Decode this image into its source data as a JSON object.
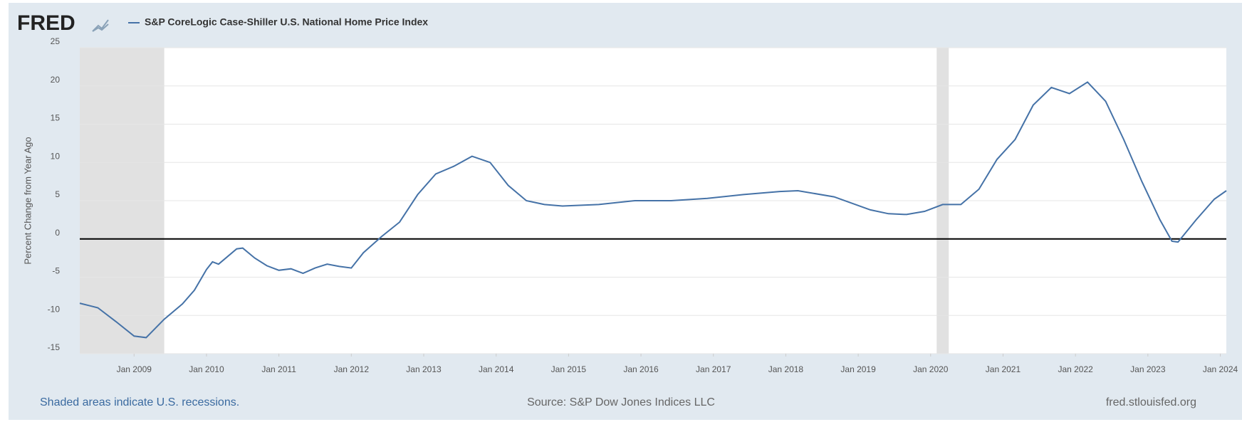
{
  "chart_data": {
    "type": "line",
    "logo": "FRED",
    "y_label": "Percent Change from Year Ago",
    "footer_left": "Shaded areas indicate U.S. recessions.",
    "footer_center": "Source: S&P Dow Jones Indices LLC",
    "footer_right": "fred.stlouisfed.org",
    "x": [
      "2008-04",
      "2008-07",
      "2008-10",
      "2009-01",
      "2009-03",
      "2009-06",
      "2009-09",
      "2009-11",
      "2010-01",
      "2010-02",
      "2010-03",
      "2010-06",
      "2010-07",
      "2010-09",
      "2010-11",
      "2011-01",
      "2011-03",
      "2011-05",
      "2011-07",
      "2011-09",
      "2011-11",
      "2012-01",
      "2012-03",
      "2012-06",
      "2012-09",
      "2012-12",
      "2013-03",
      "2013-06",
      "2013-09",
      "2013-12",
      "2014-03",
      "2014-06",
      "2014-09",
      "2014-12",
      "2015-06",
      "2015-12",
      "2016-06",
      "2016-12",
      "2017-06",
      "2017-12",
      "2018-03",
      "2018-09",
      "2019-03",
      "2019-06",
      "2019-09",
      "2019-12",
      "2020-03",
      "2020-06",
      "2020-09",
      "2020-12",
      "2021-03",
      "2021-06",
      "2021-09",
      "2021-12",
      "2022-03",
      "2022-06",
      "2022-09",
      "2022-12",
      "2023-03",
      "2023-05",
      "2023-06",
      "2023-09",
      "2023-12",
      "2024-02"
    ],
    "series": [
      {
        "name": "S&P CoreLogic Case-Shiller U.S. National Home Price Index",
        "color": "#4572a7",
        "values": [
          -8.4,
          -9,
          -10.8,
          -12.7,
          -12.9,
          -10.5,
          -8.5,
          -6.7,
          -4,
          -3,
          -3.3,
          -1.3,
          -1.2,
          -2.5,
          -3.5,
          -4.1,
          -3.9,
          -4.5,
          -3.8,
          -3.3,
          -3.6,
          -3.8,
          -1.8,
          0.3,
          2.2,
          5.8,
          8.5,
          9.5,
          10.8,
          10,
          7,
          5,
          4.5,
          4.3,
          4.5,
          5,
          5,
          5.3,
          5.8,
          6.2,
          6.3,
          5.5,
          3.8,
          3.3,
          3.2,
          3.6,
          4.5,
          4.5,
          6.5,
          10.4,
          13,
          17.5,
          19.8,
          19,
          20.5,
          18,
          13,
          7.5,
          2.5,
          -0.3,
          -0.4,
          2.5,
          5.2,
          6.3
        ]
      }
    ],
    "recessions": [
      [
        "2008-04",
        "2009-06"
      ],
      [
        "2020-02",
        "2020-04"
      ]
    ],
    "recession_color": "#e1e1e1",
    "xlim": [
      "2008-04",
      "2024-02"
    ],
    "xticks": [
      {
        "value": "2009-01",
        "label": "Jan 2009"
      },
      {
        "value": "2010-01",
        "label": "Jan 2010"
      },
      {
        "value": "2011-01",
        "label": "Jan 2011"
      },
      {
        "value": "2012-01",
        "label": "Jan 2012"
      },
      {
        "value": "2013-01",
        "label": "Jan 2013"
      },
      {
        "value": "2014-01",
        "label": "Jan 2014"
      },
      {
        "value": "2015-01",
        "label": "Jan 2015"
      },
      {
        "value": "2016-01",
        "label": "Jan 2016"
      },
      {
        "value": "2017-01",
        "label": "Jan 2017"
      },
      {
        "value": "2018-01",
        "label": "Jan 2018"
      },
      {
        "value": "2019-01",
        "label": "Jan 2019"
      },
      {
        "value": "2020-01",
        "label": "Jan 2020"
      },
      {
        "value": "2021-01",
        "label": "Jan 2021"
      },
      {
        "value": "2022-01",
        "label": "Jan 2022"
      },
      {
        "value": "2023-01",
        "label": "Jan 2023"
      },
      {
        "value": "2024-01",
        "label": "Jan 2024"
      }
    ],
    "ylim": [
      -15,
      25
    ],
    "yticks": [
      -15,
      -10,
      -5,
      0,
      5,
      10,
      15,
      20,
      25
    ],
    "grid": true
  }
}
